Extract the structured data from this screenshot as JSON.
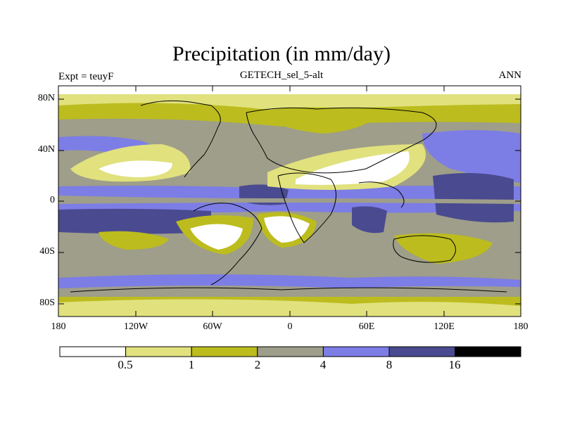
{
  "header": {
    "title": "Precipitation (in mm/day)",
    "subtitle": "GETECH_sel_5-alt",
    "left_label": "Expt = teuyF",
    "right_label": "ANN"
  },
  "axes": {
    "lat_labels": [
      "80N",
      "40N",
      "0",
      "40S",
      "80S"
    ],
    "lon_labels": [
      "180",
      "120W",
      "60W",
      "0",
      "60E",
      "120E",
      "180"
    ]
  },
  "colorbar": {
    "levels": [
      "0.5",
      "1",
      "2",
      "4",
      "8",
      "16"
    ],
    "colors": [
      "#ffffff",
      "#e1e17e",
      "#bcbc1e",
      "#9e9e8a",
      "#7d7de6",
      "#4a4a90",
      "#000000"
    ]
  }
}
